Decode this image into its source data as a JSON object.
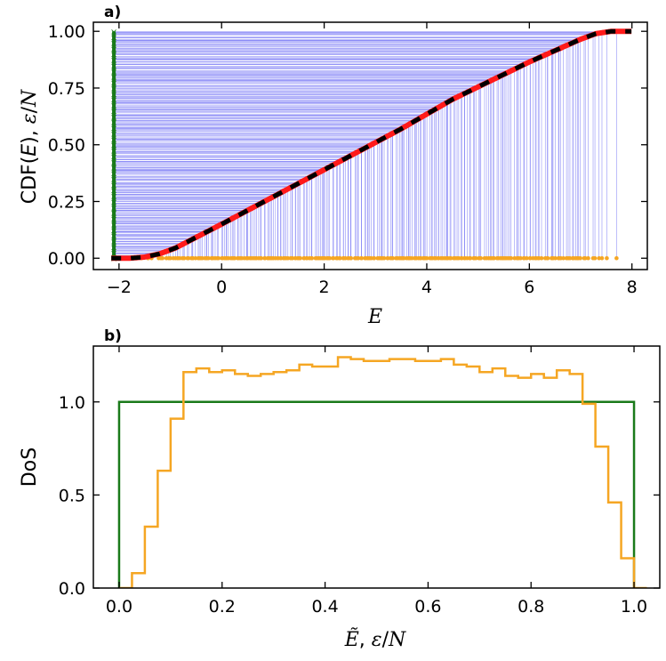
{
  "colors": {
    "blue_lines": "#3b3bf0",
    "green": "#1a7a1a",
    "orange": "#f5a623",
    "red": "#ff1a1a",
    "black": "#000000"
  },
  "chart_data": [
    {
      "id": "a",
      "panel_label": "a)",
      "type": "line",
      "xlabel": "E",
      "ylabel_parts": [
        "CDF(",
        "E",
        "), ",
        "ε",
        "/",
        "N"
      ],
      "xlim": [
        -2.5,
        8.3
      ],
      "ylim": [
        -0.05,
        1.04
      ],
      "xticks": [
        -2,
        0,
        2,
        4,
        6,
        8
      ],
      "xtick_labels": [
        "−2",
        "0",
        "2",
        "4",
        "6",
        "8"
      ],
      "yticks": [
        0.0,
        0.25,
        0.5,
        0.75,
        1.0
      ],
      "ytick_labels": [
        "0.00",
        "0.25",
        "0.50",
        "0.75",
        "1.00"
      ],
      "cdf_curve": {
        "x": [
          -2.1,
          -1.8,
          -1.5,
          -1.2,
          -0.9,
          -0.6,
          -0.3,
          0.0,
          0.5,
          1.0,
          1.5,
          2.0,
          2.5,
          3.0,
          3.5,
          4.0,
          4.5,
          5.0,
          5.5,
          6.0,
          6.5,
          7.0,
          7.3,
          7.6,
          8.0
        ],
        "y": [
          0.0,
          0.0,
          0.005,
          0.02,
          0.045,
          0.08,
          0.115,
          0.15,
          0.21,
          0.27,
          0.33,
          0.39,
          0.45,
          0.51,
          0.57,
          0.635,
          0.7,
          0.755,
          0.81,
          0.865,
          0.915,
          0.965,
          0.99,
          1.0,
          1.0
        ]
      },
      "eigenvalue_range": [
        -1.7,
        7.7
      ],
      "green_marker_x": -2.1,
      "num_spectral_lines": 260
    },
    {
      "id": "b",
      "panel_label": "b)",
      "type": "histogram",
      "xlabel_parts": [
        "Ẽ",
        ", ",
        "ε",
        "/",
        "N"
      ],
      "ylabel": "DoS",
      "xlim": [
        -0.05,
        1.05
      ],
      "ylim": [
        0.0,
        1.3
      ],
      "xticks": [
        0.0,
        0.2,
        0.4,
        0.6,
        0.8,
        1.0
      ],
      "xtick_labels": [
        "0.0",
        "0.2",
        "0.4",
        "0.6",
        "0.8",
        "1.0"
      ],
      "yticks": [
        0.0,
        0.5,
        1.0
      ],
      "ytick_labels": [
        "0.0",
        "0.5",
        "1.0"
      ],
      "bin_width": 0.025,
      "series": [
        {
          "color_key": "orange",
          "bin_start": 0.0,
          "values": [
            0.0,
            0.08,
            0.33,
            0.63,
            0.91,
            1.16,
            1.18,
            1.16,
            1.17,
            1.15,
            1.14,
            1.15,
            1.16,
            1.17,
            1.2,
            1.19,
            1.19,
            1.24,
            1.23,
            1.22,
            1.22,
            1.23,
            1.23,
            1.22,
            1.22,
            1.23,
            1.2,
            1.19,
            1.16,
            1.18,
            1.14,
            1.13,
            1.15,
            1.13,
            1.17,
            1.15,
            0.99,
            0.76,
            0.46,
            0.16,
            0.0
          ]
        },
        {
          "color_key": "green",
          "bin_start": 0.0,
          "values": [
            1.0
          ],
          "bin_end": 1.0
        }
      ]
    }
  ]
}
